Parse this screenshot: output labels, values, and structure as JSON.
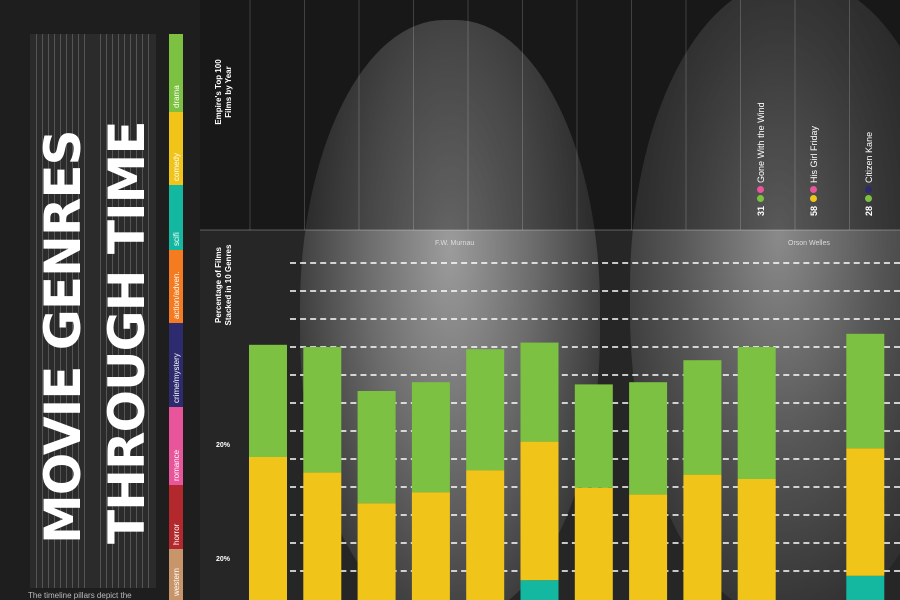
{
  "title": {
    "line1": "MOVIE GENRES",
    "line2": "THROUGH TIME"
  },
  "legend": [
    {
      "label": "drama",
      "color": "#7dc142"
    },
    {
      "label": "comedy",
      "color": "#f0c419"
    },
    {
      "label": "scifi",
      "color": "#14b8a0"
    },
    {
      "label": "action/adven.",
      "color": "#f47b20"
    },
    {
      "label": "crime/mystery",
      "color": "#2d2a6e"
    },
    {
      "label": "romance",
      "color": "#e8559b"
    },
    {
      "label": "horror",
      "color": "#b3282d"
    },
    {
      "label": "western",
      "color": "#c8956a"
    }
  ],
  "footnote": "The timeline pillars depict the",
  "axis_titles": {
    "top": "Empire's Top 100\nFilms by Year",
    "main": "Percentage of Films\nStacked in 10 Genres"
  },
  "captions": [
    {
      "name": "F.W. Murnau"
    },
    {
      "name": "Orson Welles"
    }
  ],
  "films": [
    {
      "rank": "31",
      "dots": [
        "#7dc142",
        "#e8559b"
      ],
      "title": "Gone With the Wind"
    },
    {
      "rank": "58",
      "dots": [
        "#f0c419",
        "#e8559b"
      ],
      "title": "His Girl Friday"
    },
    {
      "rank": "28",
      "dots": [
        "#7dc142",
        "#2d2a6e"
      ],
      "title": "Citizen Kane"
    }
  ],
  "chart_data": {
    "type": "bar",
    "title": "",
    "xlabel": "",
    "ylabel": "Percentage of Films Stacked in 10 Genres",
    "y_tick_labels": [
      "20%",
      "20%"
    ],
    "categories": [
      "",
      "",
      "",
      "",
      "",
      "",
      "",
      "",
      "",
      "",
      "",
      "",
      ""
    ],
    "series": [
      {
        "name": "scifi",
        "color": "#14b8a0",
        "values": [
          0,
          0,
          0,
          0,
          0,
          0.9,
          0,
          0,
          0,
          0,
          0,
          1.1,
          0
        ]
      },
      {
        "name": "comedy",
        "color": "#f0c419",
        "values": [
          6.5,
          5.8,
          4.4,
          4.9,
          5.9,
          6.3,
          5.1,
          4.8,
          5.7,
          5.5,
          0,
          5.8,
          5.7
        ]
      },
      {
        "name": "drama",
        "color": "#7dc142",
        "values": [
          5.1,
          5.7,
          5.1,
          5.0,
          5.5,
          4.5,
          4.7,
          5.1,
          5.2,
          6.0,
          0,
          5.2,
          4.4
        ]
      }
    ]
  }
}
